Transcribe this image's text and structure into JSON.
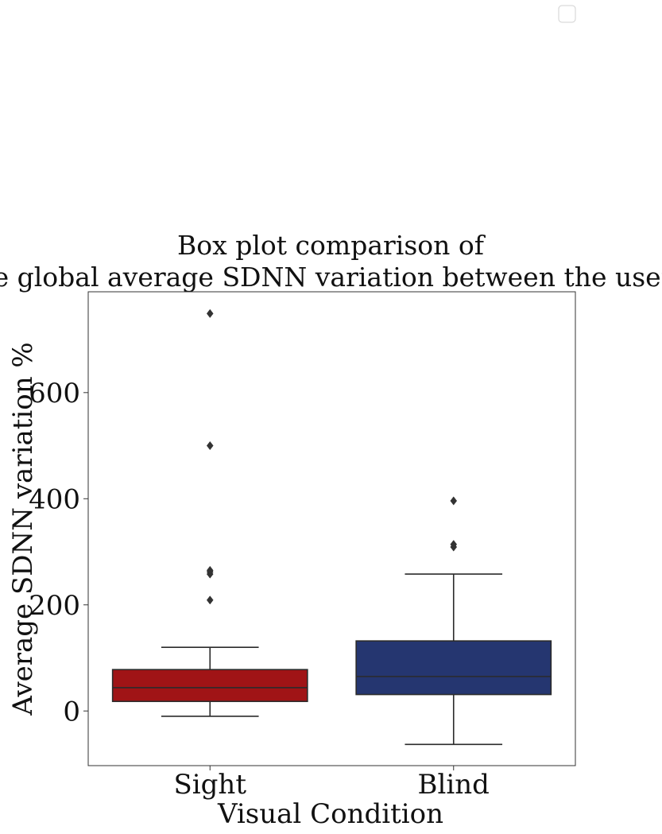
{
  "chart_data": {
    "type": "box",
    "title_lines": [
      "Box plot comparison of",
      "the global average SDNN variation between the users."
    ],
    "xlabel": "Visual Condition",
    "ylabel": "Average SDNN variation %",
    "ylim": [
      -103,
      790
    ],
    "yticks": [
      0,
      200,
      400,
      600
    ],
    "categories": [
      "Sight",
      "Blind"
    ],
    "colors": [
      "#a01416",
      "#253670"
    ],
    "boxes": [
      {
        "category": "Sight",
        "whisker_low": -10,
        "q1": 18,
        "median": 44,
        "q3": 78,
        "whisker_high": 120,
        "outliers": [
          209,
          258,
          262,
          265,
          500,
          749
        ]
      },
      {
        "category": "Blind",
        "whisker_low": -63,
        "q1": 31,
        "median": 65,
        "q3": 132,
        "whisker_high": 258,
        "outliers": [
          309,
          314,
          396
        ]
      }
    ],
    "legend": {
      "placement": "top-right",
      "entries": []
    },
    "grid": false
  }
}
